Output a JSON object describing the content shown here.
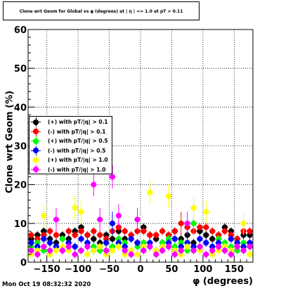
{
  "title": "Clone wrt Geom for Global vs φ (degrees) at |  η | <= 1.0 at pT > 0.11",
  "datestamp": "Mon Oct 19 08:32:32 2020",
  "chart_data": {
    "type": "scatter",
    "title": "Clone wrt Geom for Global vs φ (degrees) at |  η | <= 1.0 at pT > 0.11",
    "xlabel": "φ (degrees)",
    "ylabel": "Clone wrt Geom (%)",
    "xlim": [
      -180,
      180
    ],
    "ylim": [
      0,
      60
    ],
    "x_ticks": [
      -150,
      -100,
      -50,
      0,
      50,
      100,
      150
    ],
    "y_ticks": [
      0,
      10,
      20,
      30,
      40,
      50,
      60
    ],
    "x_tick_labels": [
      "−150",
      "−100",
      "−50",
      "0",
      "50",
      "100",
      "150"
    ],
    "y_tick_labels": [
      "0",
      "10",
      "20",
      "30",
      "40",
      "50",
      "60"
    ],
    "grid": true,
    "legend_position": "top-left",
    "series": [
      {
        "name": "(+) with pT/|q| > 0.1",
        "color": "#000000",
        "x": [
          -175,
          -165,
          -155,
          -145,
          -135,
          -125,
          -115,
          -105,
          -95,
          -85,
          -75,
          -65,
          -55,
          -45,
          -35,
          -25,
          -15,
          -5,
          5,
          15,
          25,
          35,
          45,
          55,
          65,
          75,
          85,
          95,
          105,
          115,
          125,
          135,
          145,
          155,
          165,
          175
        ],
        "y": [
          6,
          7,
          8,
          6,
          5,
          7,
          6,
          8,
          9,
          7,
          6,
          5,
          7,
          6,
          8,
          6,
          7,
          5,
          9,
          7,
          6,
          5,
          7,
          8,
          6,
          7,
          5,
          8,
          7,
          6,
          7,
          9,
          8,
          6,
          7,
          7
        ]
      },
      {
        "name": "(-) with pT/|q| > 0.1",
        "color": "#ff0000",
        "x": [
          -175,
          -165,
          -155,
          -145,
          -135,
          -125,
          -115,
          -105,
          -95,
          -85,
          -75,
          -65,
          -55,
          -45,
          -35,
          -25,
          -15,
          -5,
          5,
          15,
          25,
          35,
          45,
          55,
          65,
          75,
          85,
          95,
          105,
          115,
          125,
          135,
          145,
          155,
          165,
          175
        ],
        "y": [
          7,
          6,
          7,
          8,
          7,
          6,
          8,
          7,
          8,
          7,
          8,
          7,
          6,
          8,
          9,
          8,
          7,
          8,
          8,
          7,
          7,
          8,
          7,
          8,
          10,
          9,
          8,
          9,
          9,
          8,
          7,
          8,
          7,
          6,
          8,
          8
        ]
      },
      {
        "name": "(+) with pT/|q| > 0.5",
        "color": "#00ff00",
        "x": [
          -175,
          -165,
          -155,
          -145,
          -135,
          -125,
          -115,
          -105,
          -95,
          -85,
          -75,
          -65,
          -55,
          -45,
          -35,
          -25,
          -15,
          -5,
          5,
          15,
          25,
          35,
          45,
          55,
          65,
          75,
          85,
          95,
          105,
          115,
          125,
          135,
          145,
          155,
          165,
          175
        ],
        "y": [
          4,
          5,
          3,
          5,
          4,
          6,
          5,
          4,
          3,
          5,
          4,
          3,
          5,
          4,
          6,
          5,
          3,
          4,
          5,
          4,
          3,
          5,
          6,
          4,
          5,
          3,
          10,
          4,
          5,
          4,
          6,
          5,
          4,
          3,
          5,
          4
        ]
      },
      {
        "name": "(-) with pT/|q| > 0.5",
        "color": "#0000ff",
        "x": [
          -175,
          -165,
          -155,
          -145,
          -135,
          -125,
          -115,
          -105,
          -95,
          -85,
          -75,
          -65,
          -55,
          -45,
          -35,
          -25,
          -15,
          -5,
          5,
          15,
          25,
          35,
          45,
          55,
          65,
          75,
          85,
          95,
          105,
          115,
          125,
          135,
          145,
          155,
          165,
          175
        ],
        "y": [
          5,
          4,
          6,
          5,
          4,
          3,
          5,
          4,
          6,
          5,
          3,
          4,
          5,
          10,
          5,
          4,
          6,
          5,
          4,
          5,
          3,
          4,
          5,
          6,
          4,
          5,
          4,
          6,
          5,
          4,
          5,
          4,
          6,
          5,
          4,
          5
        ]
      },
      {
        "name": "(+) with pT/|q| > 1.0",
        "color": "#ffff00",
        "x": [
          -175,
          -165,
          -155,
          -145,
          -135,
          -125,
          -115,
          -105,
          -95,
          -85,
          -75,
          -65,
          -55,
          -45,
          -35,
          -25,
          -15,
          -5,
          5,
          15,
          25,
          35,
          45,
          55,
          65,
          75,
          85,
          95,
          105,
          115,
          125,
          135,
          145,
          155,
          165,
          175
        ],
        "y": [
          2,
          3,
          12,
          2,
          3,
          4,
          3,
          14,
          13,
          2,
          3,
          4,
          2,
          3,
          4,
          2,
          3,
          2,
          4,
          18,
          3,
          4,
          17,
          3,
          2,
          4,
          14,
          3,
          13,
          2,
          3,
          4,
          3,
          4,
          10,
          2
        ]
      },
      {
        "name": "(-) with pT/|q| > 1.0",
        "color": "#ff00ff",
        "x": [
          -175,
          -165,
          -155,
          -145,
          -135,
          -125,
          -115,
          -105,
          -95,
          -85,
          -75,
          -65,
          -55,
          -45,
          -35,
          -25,
          -15,
          -5,
          5,
          15,
          25,
          35,
          45,
          55,
          65,
          75,
          85,
          95,
          105,
          115,
          125,
          135,
          145,
          155,
          165,
          175
        ],
        "y": [
          3,
          2,
          4,
          3,
          11,
          3,
          4,
          2,
          3,
          4,
          20,
          11,
          3,
          22,
          12,
          3,
          2,
          11,
          3,
          4,
          2,
          3,
          4,
          2,
          3,
          10,
          3,
          4,
          2,
          3,
          4,
          3,
          2,
          4,
          3,
          4
        ]
      }
    ]
  }
}
